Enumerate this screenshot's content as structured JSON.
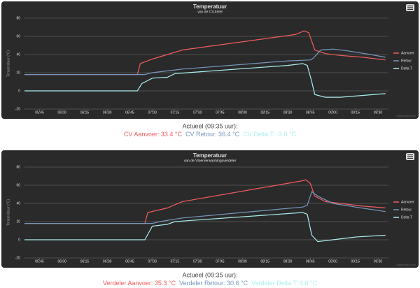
{
  "chart_data": [
    {
      "type": "line",
      "title": "Temperatuur",
      "subtitle": "van de CV-ketel",
      "y_label": "Temperatuur (°C)",
      "credits": "Highcharts.com",
      "xlim": [
        "05:35",
        "09:37"
      ],
      "xticks": [
        "05:45",
        "06:00",
        "06:15",
        "06:30",
        "06:45",
        "07:00",
        "07:15",
        "07:30",
        "07:45",
        "08:00",
        "08:15",
        "08:30",
        "08:45",
        "09:00",
        "09:15",
        "09:30"
      ],
      "ylim": [
        -20,
        80
      ],
      "yticks": [
        -20,
        0,
        20,
        40,
        60,
        80
      ],
      "grid": true,
      "legend": "right",
      "caption": "Actueel (09:35 uur):",
      "readings": [
        {
          "text": "CV Aanvoer: 33.4 °C",
          "color": "#f45b5b"
        },
        {
          "text": "CV Retour: 36.4 °C",
          "color": "#7798bf"
        },
        {
          "text": "CV Delta T: -3.0 °C",
          "color": "#aaeeee"
        }
      ],
      "series": [
        {
          "name": "Aanvoer",
          "color": "#f45b5b",
          "x": [
            "05:35",
            "06:50",
            "06:52",
            "07:00",
            "07:10",
            "07:20",
            "08:35",
            "08:41",
            "08:44",
            "08:48",
            "08:55",
            "09:05",
            "09:20",
            "09:35"
          ],
          "values": [
            18,
            18,
            30,
            35,
            40,
            45,
            62,
            66,
            64,
            45,
            41,
            39,
            37,
            34
          ]
        },
        {
          "name": "Retour",
          "color": "#7798bf",
          "x": [
            "05:35",
            "06:55",
            "07:00",
            "07:10",
            "07:20",
            "08:30",
            "08:45",
            "08:47",
            "08:52",
            "09:00",
            "09:10",
            "09:25",
            "09:35"
          ],
          "values": [
            18,
            18,
            20,
            22,
            24,
            33,
            34,
            36,
            45,
            46,
            44,
            40,
            37
          ]
        },
        {
          "name": "Delta T",
          "color": "#aaeeee",
          "x": [
            "05:35",
            "06:50",
            "06:53",
            "07:00",
            "07:10",
            "07:15",
            "08:30",
            "08:40",
            "08:43",
            "08:46",
            "08:48",
            "08:55",
            "09:05",
            "09:20",
            "09:35"
          ],
          "values": [
            0,
            0,
            8,
            14,
            15,
            19,
            28,
            30,
            28,
            10,
            -4,
            -7,
            -7,
            -5,
            -3
          ]
        }
      ]
    },
    {
      "type": "line",
      "title": "Temperatuur",
      "subtitle": "van de Vloerverwarmingsverdeler",
      "y_label": "Temperatuur (°C)",
      "credits": "Highcharts.com",
      "xlim": [
        "05:35",
        "09:37"
      ],
      "xticks": [
        "05:45",
        "06:00",
        "06:15",
        "06:30",
        "06:45",
        "07:00",
        "07:15",
        "07:30",
        "07:45",
        "08:00",
        "08:15",
        "08:30",
        "08:45",
        "09:00",
        "09:15",
        "09:30"
      ],
      "ylim": [
        -20,
        80
      ],
      "yticks": [
        -20,
        0,
        20,
        40,
        60,
        80
      ],
      "grid": true,
      "legend": "right",
      "caption": "Actueel (09:35 uur):",
      "readings": [
        {
          "text": "Verdeler Aanvoer: 35.3 °C",
          "color": "#f45b5b"
        },
        {
          "text": "Verdeler Retour: 30.6 °C",
          "color": "#7798bf"
        },
        {
          "text": "Verdeler Delta T: 4.6 °C",
          "color": "#aaeeee"
        }
      ],
      "series": [
        {
          "name": "Aanvoer",
          "color": "#f45b5b",
          "x": [
            "05:35",
            "06:55",
            "06:57",
            "07:10",
            "07:20",
            "08:40",
            "08:42",
            "08:45",
            "08:48",
            "08:55",
            "09:05",
            "09:20",
            "09:35"
          ],
          "values": [
            18,
            18,
            30,
            35,
            42,
            65,
            66,
            62,
            48,
            42,
            40,
            37,
            35
          ]
        },
        {
          "name": "Retour",
          "color": "#7798bf",
          "x": [
            "05:35",
            "07:00",
            "07:05",
            "07:20",
            "08:40",
            "08:43",
            "08:46",
            "08:50",
            "09:00",
            "09:15",
            "09:35"
          ],
          "values": [
            18,
            18,
            20,
            24,
            36,
            38,
            53,
            48,
            40,
            36,
            31
          ]
        },
        {
          "name": "Delta T",
          "color": "#aaeeee",
          "x": [
            "05:35",
            "06:55",
            "07:00",
            "07:10",
            "07:15",
            "08:40",
            "08:43",
            "08:46",
            "08:50",
            "09:00",
            "09:15",
            "09:35"
          ],
          "values": [
            0,
            0,
            15,
            17,
            20,
            30,
            28,
            5,
            -2,
            0,
            3,
            5
          ]
        }
      ]
    }
  ]
}
